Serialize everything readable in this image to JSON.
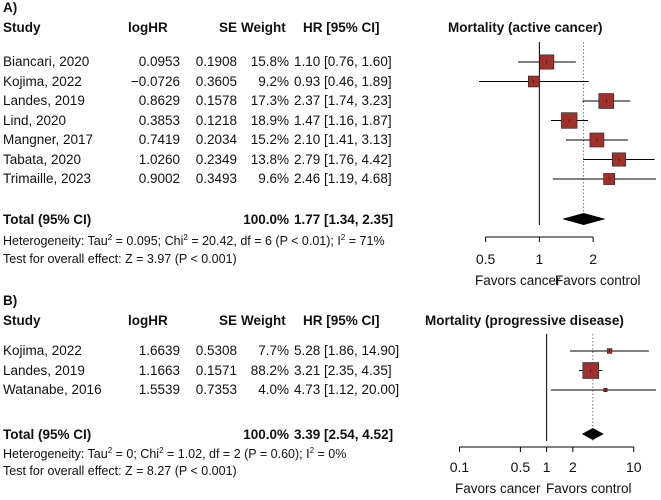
{
  "chart_data": [
    {
      "type": "forest",
      "panel_label": "A)",
      "title": "Mortality (active cancer)",
      "columns": [
        "Study",
        "logHR",
        "SE",
        "Weight",
        "HR [95% CI]"
      ],
      "scale": "log",
      "xlim": [
        0.3,
        4.5
      ],
      "ticks": [
        0.5,
        1,
        2
      ],
      "tick_labels": [
        "0.5",
        "1",
        "2"
      ],
      "favors_left": "Favors cancer",
      "favors_right": "Favors control",
      "studies": [
        {
          "study": "Biancari, 2020",
          "loghr": "0.0953",
          "se": "0.1908",
          "weight_label": "15.8%",
          "weight": 15.8,
          "hr_ci": "1.10 [0.76, 1.60]",
          "hr": 1.1,
          "lo": 0.76,
          "hi": 1.6
        },
        {
          "study": "Kojima, 2022",
          "loghr": "−0.0726",
          "se": "0.3605",
          "weight_label": "9.2%",
          "weight": 9.2,
          "hr_ci": "0.93 [0.46, 1.89]",
          "hr": 0.93,
          "lo": 0.46,
          "hi": 1.89
        },
        {
          "study": "Landes, 2019",
          "loghr": "0.8629",
          "se": "0.1578",
          "weight_label": "17.3%",
          "weight": 17.3,
          "hr_ci": "2.37 [1.74, 3.23]",
          "hr": 2.37,
          "lo": 1.74,
          "hi": 3.23
        },
        {
          "study": "Lind, 2020",
          "loghr": "0.3853",
          "se": "0.1218",
          "weight_label": "18.9%",
          "weight": 18.9,
          "hr_ci": "1.47 [1.16, 1.87]",
          "hr": 1.47,
          "lo": 1.16,
          "hi": 1.87
        },
        {
          "study": "Mangner, 2017",
          "loghr": "0.7419",
          "se": "0.2034",
          "weight_label": "15.2%",
          "weight": 15.2,
          "hr_ci": "2.10 [1.41, 3.13]",
          "hr": 2.1,
          "lo": 1.41,
          "hi": 3.13
        },
        {
          "study": "Tabata, 2020",
          "loghr": "1.0260",
          "se": "0.2349",
          "weight_label": "13.8%",
          "weight": 13.8,
          "hr_ci": "2.79 [1.76, 4.42]",
          "hr": 2.79,
          "lo": 1.76,
          "hi": 4.42
        },
        {
          "study": "Trimaille, 2023",
          "loghr": "0.9002",
          "se": "0.3493",
          "weight_label": "9.6%",
          "weight": 9.6,
          "hr_ci": "2.46 [1.19, 4.68]",
          "hr": 2.46,
          "lo": 1.19,
          "hi": 4.68
        }
      ],
      "total": {
        "label": "Total (95% CI)",
        "weight_label": "100.0%",
        "hr_ci": "1.77 [1.34, 2.35]",
        "hr": 1.77,
        "lo": 1.34,
        "hi": 2.35
      },
      "heterogeneity": {
        "pre": "Heterogeneity: Tau",
        "tau2": " = 0.095; Chi",
        "chi2": " = 20.42, df = 6 (P < 0.01); I",
        "i2": " = 71%",
        "sup": "2"
      },
      "overall_effect": "Test for overall effect: Z = 3.97 (P < 0.001)"
    },
    {
      "type": "forest",
      "panel_label": "B)",
      "title": "Mortality (progressive disease)",
      "columns": [
        "Study",
        "logHR",
        "SE",
        "Weight",
        "HR [95% CI]"
      ],
      "scale": "log",
      "xlim": [
        0.07,
        18
      ],
      "ticks": [
        0.1,
        0.5,
        1,
        2,
        10
      ],
      "tick_labels": [
        "0.1",
        "0.5",
        "1",
        "2",
        "10"
      ],
      "favors_left": "Favors cancer",
      "favors_right": "Favors control",
      "studies": [
        {
          "study": "Kojima, 2022",
          "loghr": "1.6639",
          "se": "0.5308",
          "weight_label": "7.7%",
          "weight": 7.7,
          "hr_ci": "5.28 [1.86, 14.90]",
          "hr": 5.28,
          "lo": 1.86,
          "hi": 14.9
        },
        {
          "study": "Landes, 2019",
          "loghr": "1.1663",
          "se": "0.1571",
          "weight_label": "88.2%",
          "weight": 88.2,
          "hr_ci": "3.21 [2.35,  4.35]",
          "hr": 3.21,
          "lo": 2.35,
          "hi": 4.35
        },
        {
          "study": "Watanabe, 2016",
          "loghr": "1.5539",
          "se": "0.7353",
          "weight_label": "4.0%",
          "weight": 4.0,
          "hr_ci": "4.73 [1.12, 20.00]",
          "hr": 4.73,
          "lo": 1.12,
          "hi": 20.0
        }
      ],
      "total": {
        "label": "Total (95% CI)",
        "weight_label": "100.0%",
        "hr_ci": "3.39 [2.54,  4.52]",
        "hr": 3.39,
        "lo": 2.54,
        "hi": 4.52
      },
      "heterogeneity": {
        "pre": "Heterogeneity: Tau",
        "tau2": " = 0; Chi",
        "chi2": " = 1.02, df = 2 (P = 0.60); I",
        "i2": " = 0%",
        "sup": "2"
      },
      "overall_effect": "Test for overall effect: Z = 8.27 (P < 0.001)"
    }
  ],
  "colors": {
    "marker": "#a0302b",
    "diamond": "#000000",
    "line": "#000000"
  }
}
